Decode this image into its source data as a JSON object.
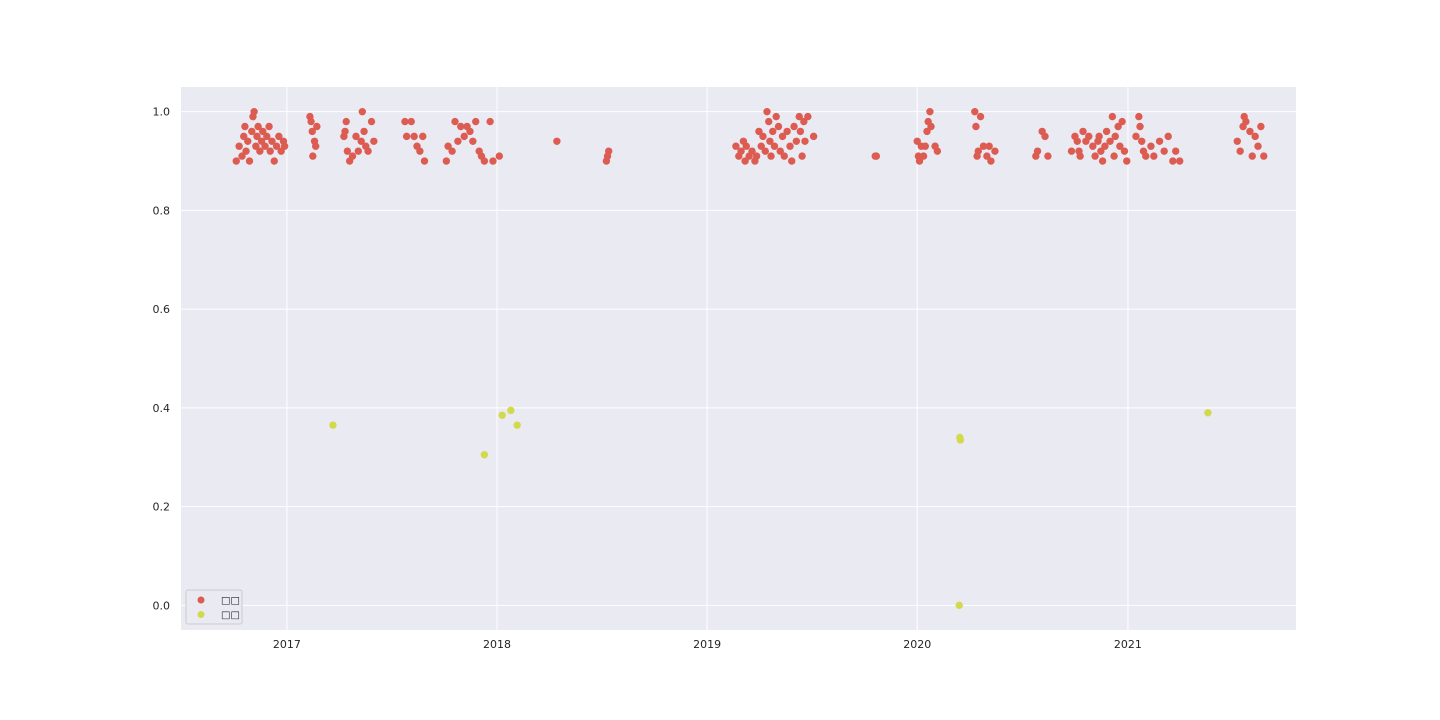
{
  "chart_data": {
    "type": "scatter",
    "title": "",
    "xlabel": "",
    "ylabel": "",
    "x_axis_type": "date",
    "xlim": [
      "2016-07-01",
      "2021-10-20"
    ],
    "ylim": [
      -0.05,
      1.05
    ],
    "x_ticks": [
      "2017-01-01",
      "2018-01-01",
      "2019-01-01",
      "2020-01-01",
      "2021-01-01"
    ],
    "x_tick_labels": [
      "2017",
      "2018",
      "2019",
      "2020",
      "2021"
    ],
    "y_ticks": [
      0.0,
      0.2,
      0.4,
      0.6,
      0.8,
      1.0
    ],
    "y_tick_labels": [
      "0.0",
      "0.2",
      "0.4",
      "0.6",
      "0.8",
      "1.0"
    ],
    "grid": true,
    "legend": {
      "position": "lower-left",
      "labels": [
        "□□",
        "□□"
      ]
    },
    "background": "#eaeaf2",
    "series": [
      {
        "color": "#dd5c52",
        "points": [
          [
            "2016-10-05",
            0.9
          ],
          [
            "2016-10-10",
            0.93
          ],
          [
            "2016-10-15",
            0.91
          ],
          [
            "2016-10-18",
            0.95
          ],
          [
            "2016-10-20",
            0.97
          ],
          [
            "2016-10-22",
            0.92
          ],
          [
            "2016-10-25",
            0.94
          ],
          [
            "2016-10-28",
            0.9
          ],
          [
            "2016-11-01",
            0.96
          ],
          [
            "2016-11-03",
            0.99
          ],
          [
            "2016-11-05",
            1.0
          ],
          [
            "2016-11-08",
            0.93
          ],
          [
            "2016-11-10",
            0.95
          ],
          [
            "2016-11-12",
            0.97
          ],
          [
            "2016-11-15",
            0.92
          ],
          [
            "2016-11-18",
            0.94
          ],
          [
            "2016-11-20",
            0.96
          ],
          [
            "2016-11-24",
            0.93
          ],
          [
            "2016-11-27",
            0.95
          ],
          [
            "2016-12-01",
            0.97
          ],
          [
            "2016-12-03",
            0.92
          ],
          [
            "2016-12-06",
            0.94
          ],
          [
            "2016-12-10",
            0.9
          ],
          [
            "2016-12-14",
            0.93
          ],
          [
            "2016-12-18",
            0.95
          ],
          [
            "2016-12-22",
            0.92
          ],
          [
            "2016-12-26",
            0.94
          ],
          [
            "2016-12-28",
            0.93
          ],
          [
            "2017-02-10",
            0.99
          ],
          [
            "2017-02-12",
            0.98
          ],
          [
            "2017-02-14",
            0.96
          ],
          [
            "2017-02-15",
            0.91
          ],
          [
            "2017-02-18",
            0.94
          ],
          [
            "2017-02-20",
            0.93
          ],
          [
            "2017-02-22",
            0.97
          ],
          [
            "2017-04-10",
            0.95
          ],
          [
            "2017-04-12",
            0.96
          ],
          [
            "2017-04-14",
            0.98
          ],
          [
            "2017-04-16",
            0.92
          ],
          [
            "2017-04-20",
            0.9
          ],
          [
            "2017-04-25",
            0.91
          ],
          [
            "2017-05-01",
            0.95
          ],
          [
            "2017-05-05",
            0.92
          ],
          [
            "2017-05-10",
            0.94
          ],
          [
            "2017-05-12",
            1.0
          ],
          [
            "2017-05-15",
            0.96
          ],
          [
            "2017-05-18",
            0.93
          ],
          [
            "2017-05-22",
            0.92
          ],
          [
            "2017-05-28",
            0.98
          ],
          [
            "2017-06-01",
            0.94
          ],
          [
            "2017-07-25",
            0.98
          ],
          [
            "2017-07-28",
            0.95
          ],
          [
            "2017-08-05",
            0.98
          ],
          [
            "2017-08-10",
            0.95
          ],
          [
            "2017-08-15",
            0.93
          ],
          [
            "2017-08-20",
            0.92
          ],
          [
            "2017-08-25",
            0.95
          ],
          [
            "2017-08-28",
            0.9
          ],
          [
            "2017-10-05",
            0.9
          ],
          [
            "2017-10-08",
            0.93
          ],
          [
            "2017-10-15",
            0.92
          ],
          [
            "2017-10-20",
            0.98
          ],
          [
            "2017-10-25",
            0.94
          ],
          [
            "2017-10-30",
            0.97
          ],
          [
            "2017-11-05",
            0.95
          ],
          [
            "2017-11-10",
            0.97
          ],
          [
            "2017-11-15",
            0.96
          ],
          [
            "2017-11-20",
            0.94
          ],
          [
            "2017-11-25",
            0.98
          ],
          [
            "2017-12-01",
            0.92
          ],
          [
            "2017-12-05",
            0.91
          ],
          [
            "2017-12-10",
            0.9
          ],
          [
            "2017-12-20",
            0.98
          ],
          [
            "2017-12-25",
            0.9
          ],
          [
            "2018-01-05",
            0.91
          ],
          [
            "2018-04-15",
            0.94
          ],
          [
            "2018-07-10",
            0.9
          ],
          [
            "2018-07-12",
            0.91
          ],
          [
            "2018-07-14",
            0.92
          ],
          [
            "2019-02-20",
            0.93
          ],
          [
            "2019-02-25",
            0.91
          ],
          [
            "2019-03-01",
            0.92
          ],
          [
            "2019-03-05",
            0.94
          ],
          [
            "2019-03-08",
            0.9
          ],
          [
            "2019-03-10",
            0.93
          ],
          [
            "2019-03-15",
            0.91
          ],
          [
            "2019-03-20",
            0.92
          ],
          [
            "2019-03-25",
            0.9
          ],
          [
            "2019-03-28",
            0.91
          ],
          [
            "2019-04-01",
            0.96
          ],
          [
            "2019-04-05",
            0.93
          ],
          [
            "2019-04-08",
            0.95
          ],
          [
            "2019-04-12",
            0.92
          ],
          [
            "2019-04-15",
            1.0
          ],
          [
            "2019-04-18",
            0.98
          ],
          [
            "2019-04-20",
            0.94
          ],
          [
            "2019-04-22",
            0.91
          ],
          [
            "2019-04-25",
            0.96
          ],
          [
            "2019-04-28",
            0.93
          ],
          [
            "2019-05-01",
            0.99
          ],
          [
            "2019-05-05",
            0.97
          ],
          [
            "2019-05-08",
            0.92
          ],
          [
            "2019-05-12",
            0.95
          ],
          [
            "2019-05-15",
            0.91
          ],
          [
            "2019-05-20",
            0.96
          ],
          [
            "2019-05-25",
            0.93
          ],
          [
            "2019-05-28",
            0.9
          ],
          [
            "2019-06-01",
            0.97
          ],
          [
            "2019-06-05",
            0.94
          ],
          [
            "2019-06-10",
            0.99
          ],
          [
            "2019-06-12",
            0.96
          ],
          [
            "2019-06-15",
            0.91
          ],
          [
            "2019-06-18",
            0.98
          ],
          [
            "2019-06-20",
            0.94
          ],
          [
            "2019-06-25",
            0.99
          ],
          [
            "2019-07-05",
            0.95
          ],
          [
            "2019-10-20",
            0.91
          ],
          [
            "2019-10-22",
            0.91
          ],
          [
            "2020-01-01",
            0.94
          ],
          [
            "2020-01-03",
            0.91
          ],
          [
            "2020-01-05",
            0.9
          ],
          [
            "2020-01-08",
            0.93
          ],
          [
            "2020-01-12",
            0.91
          ],
          [
            "2020-01-15",
            0.93
          ],
          [
            "2020-01-18",
            0.96
          ],
          [
            "2020-01-20",
            0.98
          ],
          [
            "2020-01-23",
            1.0
          ],
          [
            "2020-01-25",
            0.97
          ],
          [
            "2020-02-01",
            0.93
          ],
          [
            "2020-02-05",
            0.92
          ],
          [
            "2020-04-10",
            1.0
          ],
          [
            "2020-04-12",
            0.97
          ],
          [
            "2020-04-14",
            0.91
          ],
          [
            "2020-04-16",
            0.92
          ],
          [
            "2020-04-20",
            0.99
          ],
          [
            "2020-04-25",
            0.93
          ],
          [
            "2020-05-01",
            0.91
          ],
          [
            "2020-05-05",
            0.93
          ],
          [
            "2020-05-08",
            0.9
          ],
          [
            "2020-05-15",
            0.92
          ],
          [
            "2020-07-25",
            0.91
          ],
          [
            "2020-07-28",
            0.92
          ],
          [
            "2020-08-05",
            0.96
          ],
          [
            "2020-08-10",
            0.95
          ],
          [
            "2020-08-15",
            0.91
          ],
          [
            "2020-09-25",
            0.92
          ],
          [
            "2020-10-01",
            0.95
          ],
          [
            "2020-10-05",
            0.94
          ],
          [
            "2020-10-08",
            0.92
          ],
          [
            "2020-10-10",
            0.91
          ],
          [
            "2020-10-15",
            0.96
          ],
          [
            "2020-10-20",
            0.94
          ],
          [
            "2020-10-25",
            0.95
          ],
          [
            "2020-11-01",
            0.93
          ],
          [
            "2020-11-05",
            0.91
          ],
          [
            "2020-11-10",
            0.94
          ],
          [
            "2020-11-12",
            0.95
          ],
          [
            "2020-11-15",
            0.92
          ],
          [
            "2020-11-18",
            0.9
          ],
          [
            "2020-11-22",
            0.93
          ],
          [
            "2020-11-25",
            0.96
          ],
          [
            "2020-12-01",
            0.94
          ],
          [
            "2020-12-05",
            0.99
          ],
          [
            "2020-12-08",
            0.91
          ],
          [
            "2020-12-10",
            0.95
          ],
          [
            "2020-12-15",
            0.97
          ],
          [
            "2020-12-18",
            0.93
          ],
          [
            "2020-12-22",
            0.98
          ],
          [
            "2020-12-26",
            0.92
          ],
          [
            "2020-12-30",
            0.9
          ],
          [
            "2021-01-15",
            0.95
          ],
          [
            "2021-01-20",
            0.99
          ],
          [
            "2021-01-22",
            0.97
          ],
          [
            "2021-01-25",
            0.94
          ],
          [
            "2021-01-28",
            0.92
          ],
          [
            "2021-02-01",
            0.91
          ],
          [
            "2021-02-10",
            0.93
          ],
          [
            "2021-02-15",
            0.91
          ],
          [
            "2021-02-25",
            0.94
          ],
          [
            "2021-03-05",
            0.92
          ],
          [
            "2021-03-12",
            0.95
          ],
          [
            "2021-03-20",
            0.9
          ],
          [
            "2021-03-25",
            0.92
          ],
          [
            "2021-04-01",
            0.9
          ],
          [
            "2021-07-10",
            0.94
          ],
          [
            "2021-07-15",
            0.92
          ],
          [
            "2021-07-20",
            0.97
          ],
          [
            "2021-07-22",
            0.99
          ],
          [
            "2021-07-25",
            0.98
          ],
          [
            "2021-08-01",
            0.96
          ],
          [
            "2021-08-05",
            0.91
          ],
          [
            "2021-08-10",
            0.95
          ],
          [
            "2021-08-15",
            0.93
          ],
          [
            "2021-08-20",
            0.97
          ],
          [
            "2021-08-25",
            0.91
          ]
        ]
      },
      {
        "color": "#d3d94c",
        "points": [
          [
            "2017-03-22",
            0.365
          ],
          [
            "2017-12-10",
            0.305
          ],
          [
            "2018-01-10",
            0.385
          ],
          [
            "2018-01-25",
            0.395
          ],
          [
            "2018-02-05",
            0.365
          ],
          [
            "2020-03-15",
            0.34
          ],
          [
            "2020-03-16",
            0.335
          ],
          [
            "2020-03-14",
            0.0
          ],
          [
            "2021-05-20",
            0.39
          ]
        ]
      }
    ]
  }
}
